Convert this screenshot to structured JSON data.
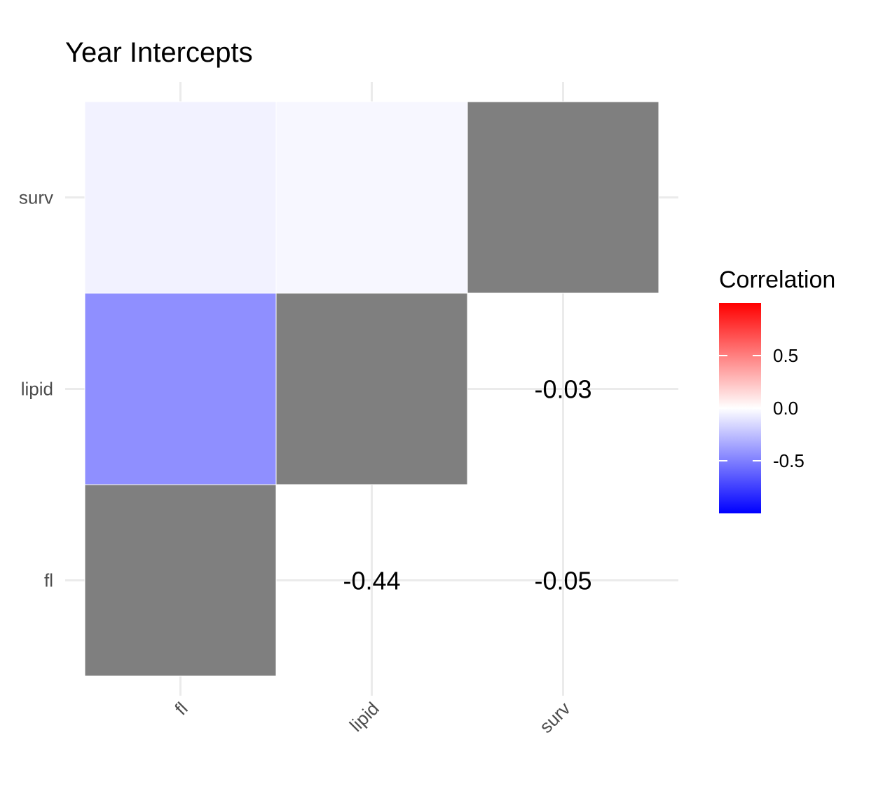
{
  "chart_data": {
    "type": "heatmap",
    "title": "Year Intercepts",
    "x_categories": [
      "fl",
      "lipid",
      "surv"
    ],
    "y_categories": [
      "fl",
      "lipid",
      "surv"
    ],
    "cells": [
      {
        "x": "fl",
        "y": "fl",
        "value": null,
        "fill": "#7f7f7f",
        "label": ""
      },
      {
        "x": "fl",
        "y": "lipid",
        "value": -0.44,
        "label": ""
      },
      {
        "x": "fl",
        "y": "surv",
        "value": -0.05,
        "label": ""
      },
      {
        "x": "lipid",
        "y": "lipid",
        "value": null,
        "fill": "#7f7f7f",
        "label": ""
      },
      {
        "x": "lipid",
        "y": "surv",
        "value": -0.03,
        "label": ""
      },
      {
        "x": "surv",
        "y": "surv",
        "value": null,
        "fill": "#7f7f7f",
        "label": ""
      },
      {
        "x": "lipid",
        "y": "fl",
        "value": null,
        "label": "-0.44"
      },
      {
        "x": "surv",
        "y": "fl",
        "value": null,
        "label": "-0.05"
      },
      {
        "x": "surv",
        "y": "lipid",
        "value": null,
        "label": "-0.03"
      }
    ],
    "legend": {
      "title": "Correlation",
      "placement": "right",
      "range": [
        -1,
        1
      ],
      "breaks": [
        0.5,
        0.0,
        -0.5
      ],
      "break_labels": [
        "0.5",
        "0.0",
        "-0.5"
      ],
      "colors": {
        "low": "#0000ff",
        "mid": "#ffffff",
        "high": "#ff0000"
      }
    },
    "diagonal_fill": "#7f7f7f",
    "grid": true
  }
}
